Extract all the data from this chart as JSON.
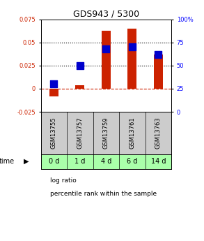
{
  "title": "GDS943 / 5300",
  "samples": [
    "GSM13755",
    "GSM13757",
    "GSM13759",
    "GSM13761",
    "GSM13763"
  ],
  "time_labels": [
    "0 d",
    "1 d",
    "4 d",
    "6 d",
    "14 d"
  ],
  "log_ratio": [
    -0.008,
    0.004,
    0.063,
    0.065,
    0.037
  ],
  "percentile_rank": [
    30,
    50,
    68,
    70,
    62
  ],
  "ylim_left": [
    -0.025,
    0.075
  ],
  "ylim_right": [
    0,
    100
  ],
  "yticks_left": [
    -0.025,
    0,
    0.025,
    0.05,
    0.075
  ],
  "ytick_labels_left": [
    "-0.025",
    "0",
    "0.025",
    "0.05",
    "0.075"
  ],
  "yticks_right": [
    0,
    25,
    50,
    75,
    100
  ],
  "ytick_labels_right": [
    "0",
    "25",
    "50",
    "75",
    "100%"
  ],
  "bar_color_red": "#cc2200",
  "bar_color_blue": "#0000cc",
  "dotted_line_color": "#000000",
  "zero_line_color": "#cc2200",
  "bg_color_samples": "#cccccc",
  "bg_color_time_green": "#aaffaa",
  "time_row_label": "time",
  "legend_log_ratio": "log ratio",
  "legend_percentile": "percentile rank within the sample",
  "bar_width": 0.35,
  "blue_dot_size": 55
}
